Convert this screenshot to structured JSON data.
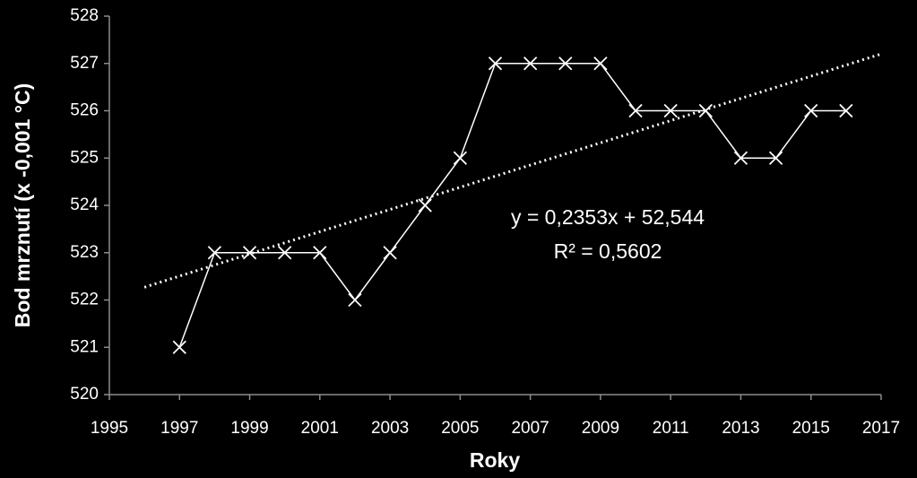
{
  "chart_data": {
    "type": "line",
    "x_label": "Roky",
    "y_label": "Bod mrznutí (x -0,001 °C)",
    "x": [
      1997,
      1998,
      1999,
      2000,
      2001,
      2002,
      2003,
      2004,
      2005,
      2006,
      2007,
      2008,
      2009,
      2010,
      2011,
      2012,
      2013,
      2014,
      2015,
      2016
    ],
    "values": [
      521,
      523,
      523,
      523,
      523,
      522,
      523,
      524,
      525,
      527,
      527,
      527,
      527,
      526,
      526,
      526,
      525,
      525,
      526,
      526
    ],
    "color": "#ffffff",
    "trendline": {
      "x": [
        1996,
        2017
      ],
      "values": [
        522.27,
        527.2
      ]
    },
    "annotations": [
      "y = 0,2353x + 52,544",
      "R² = 0,5602"
    ],
    "xlim": [
      1995,
      2017
    ],
    "xticks": [
      1995,
      1997,
      1999,
      2001,
      2003,
      2005,
      2007,
      2009,
      2011,
      2013,
      2015,
      2017
    ],
    "ylim": [
      520,
      528
    ],
    "yticks": [
      520,
      521,
      522,
      523,
      524,
      525,
      526,
      527,
      528
    ],
    "grid": false
  }
}
